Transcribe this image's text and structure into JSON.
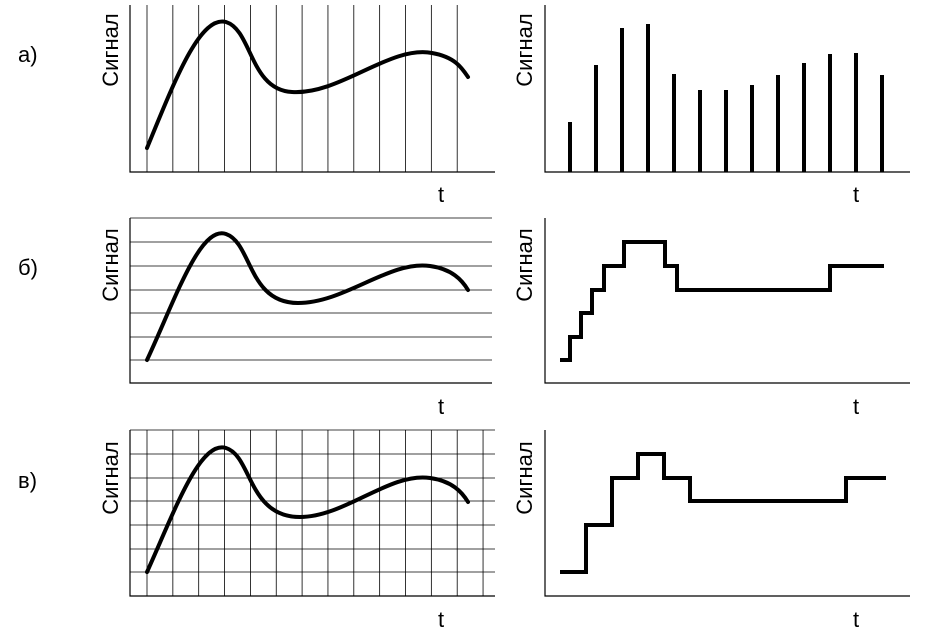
{
  "rows": [
    {
      "label": "а)",
      "panels": [
        {
          "y_label": "Сигнал",
          "x_label": "t"
        },
        {
          "y_label": "Сигнал",
          "x_label": "t"
        }
      ]
    },
    {
      "label": "б)",
      "panels": [
        {
          "y_label": "Сигнал",
          "x_label": "t"
        },
        {
          "y_label": "Сигнал",
          "x_label": "t"
        }
      ]
    },
    {
      "label": "в)",
      "panels": [
        {
          "y_label": "Сигнал",
          "x_label": "t"
        },
        {
          "y_label": "Сигнал",
          "x_label": "t"
        }
      ]
    }
  ]
}
